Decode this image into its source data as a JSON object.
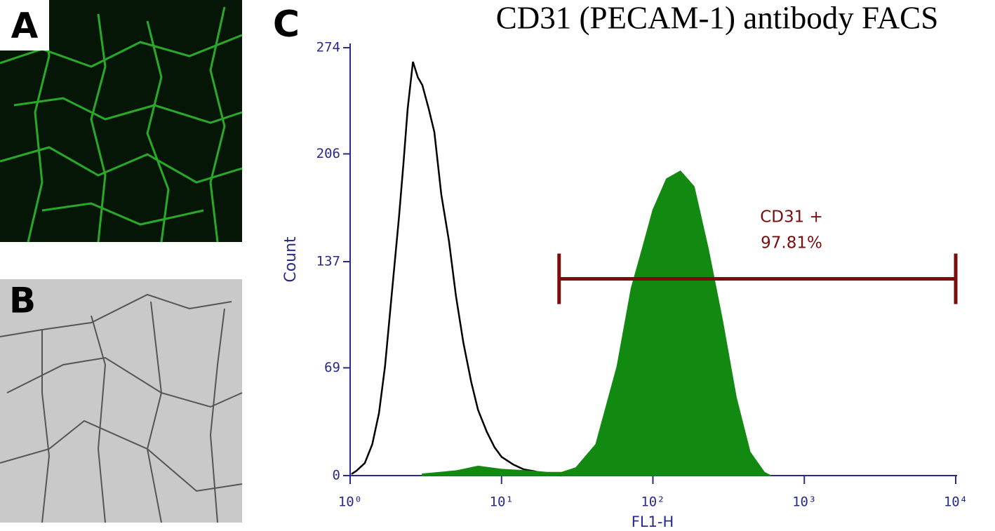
{
  "panels": {
    "a": "A",
    "b": "B",
    "c": "C"
  },
  "chart_data": {
    "type": "histogram-overlay",
    "title": "CD31 (PECAM-1) antibody FACS",
    "xlabel": "FL1-H",
    "ylabel": "Count",
    "xscale": "log",
    "xlim": [
      1,
      10000
    ],
    "xticks": [
      {
        "value": 1,
        "label": "10⁰"
      },
      {
        "value": 10,
        "label": "10¹"
      },
      {
        "value": 100,
        "label": "10²"
      },
      {
        "value": 1000,
        "label": "10³"
      },
      {
        "value": 10000,
        "label": "10⁴"
      }
    ],
    "ylim": [
      0,
      274
    ],
    "yticks": [
      0,
      69,
      137,
      206,
      274
    ],
    "series": [
      {
        "style": "outline",
        "color": "#000000",
        "x": [
          1.02,
          1.1,
          1.25,
          1.4,
          1.55,
          1.7,
          1.9,
          2.1,
          2.25,
          2.4,
          2.6,
          2.8,
          3.0,
          3.3,
          3.6,
          4.0,
          4.5,
          5.0,
          5.6,
          6.3,
          7.0,
          8.0,
          9.0,
          10,
          12,
          14,
          16,
          20,
          25
        ],
        "values": [
          1,
          3,
          8,
          20,
          40,
          70,
          120,
          165,
          200,
          235,
          265,
          255,
          250,
          235,
          220,
          180,
          150,
          115,
          85,
          60,
          42,
          28,
          18,
          12,
          7,
          4,
          3,
          1,
          0
        ]
      },
      {
        "style": "filled",
        "color": "#128a12",
        "x": [
          3,
          5,
          7,
          10,
          15,
          20,
          25,
          31,
          42,
          58,
          72,
          85,
          100,
          123,
          152,
          187,
          232,
          287,
          355,
          438,
          545,
          600
        ],
        "values": [
          1,
          3,
          6,
          4,
          3,
          2,
          2,
          5,
          20,
          70,
          120,
          145,
          170,
          190,
          195,
          185,
          145,
          100,
          50,
          15,
          2,
          0
        ]
      }
    ],
    "gate": {
      "name": "CD31 +",
      "percent": "97.81%",
      "x": [
        24,
        10000
      ],
      "y": 126,
      "color": "#7a0c0c"
    }
  }
}
